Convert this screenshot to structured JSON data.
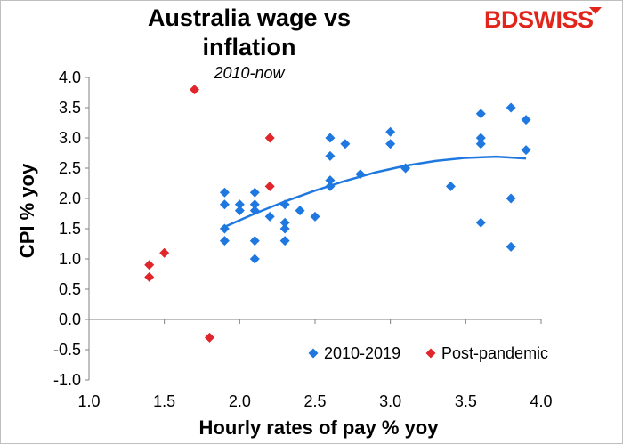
{
  "chart_data": {
    "type": "scatter",
    "title": "Australia wage vs inflation",
    "subtitle": "2010-now",
    "xlabel": "Hourly rates of pay %  yoy",
    "ylabel": "CPI % yoy",
    "xlim": [
      1.0,
      4.0
    ],
    "ylim": [
      -1.0,
      4.0
    ],
    "x_ticks": [
      "1.0",
      "1.5",
      "2.0",
      "2.5",
      "3.0",
      "3.5",
      "4.0"
    ],
    "y_ticks": [
      "4.0",
      "3.5",
      "3.0",
      "2.5",
      "2.0",
      "1.5",
      "1.0",
      "0.5",
      "0.0",
      "-0.5",
      "-1.0"
    ],
    "grid": false,
    "legend_position": "bottom-right",
    "series": [
      {
        "name": "2010-2019",
        "color": "#1f78e0",
        "marker": "diamond",
        "points": [
          [
            1.9,
            2.1
          ],
          [
            1.9,
            1.9
          ],
          [
            1.9,
            1.5
          ],
          [
            1.9,
            1.3
          ],
          [
            2.0,
            1.9
          ],
          [
            2.0,
            1.8
          ],
          [
            2.1,
            2.1
          ],
          [
            2.1,
            1.9
          ],
          [
            2.1,
            1.8
          ],
          [
            2.1,
            1.3
          ],
          [
            2.1,
            1.0
          ],
          [
            2.2,
            1.7
          ],
          [
            2.3,
            1.9
          ],
          [
            2.3,
            1.6
          ],
          [
            2.3,
            1.5
          ],
          [
            2.3,
            1.3
          ],
          [
            2.4,
            1.8
          ],
          [
            2.5,
            1.7
          ],
          [
            2.6,
            3.0
          ],
          [
            2.6,
            2.7
          ],
          [
            2.6,
            2.3
          ],
          [
            2.6,
            2.2
          ],
          [
            2.7,
            2.9
          ],
          [
            2.8,
            2.4
          ],
          [
            3.0,
            3.1
          ],
          [
            3.0,
            2.9
          ],
          [
            3.1,
            2.5
          ],
          [
            3.4,
            2.2
          ],
          [
            3.6,
            3.4
          ],
          [
            3.6,
            3.0
          ],
          [
            3.6,
            2.9
          ],
          [
            3.6,
            1.6
          ],
          [
            3.8,
            3.5
          ],
          [
            3.8,
            2.0
          ],
          [
            3.8,
            1.2
          ],
          [
            3.9,
            3.3
          ],
          [
            3.9,
            2.8
          ]
        ]
      },
      {
        "name": "Post-pandemic",
        "color": "#e0262b",
        "marker": "diamond",
        "points": [
          [
            1.7,
            3.8
          ],
          [
            2.2,
            3.0
          ],
          [
            2.2,
            2.2
          ],
          [
            1.5,
            1.1
          ],
          [
            1.4,
            0.9
          ],
          [
            1.4,
            0.7
          ],
          [
            1.8,
            -0.3
          ]
        ]
      }
    ],
    "trendline": {
      "series": "2010-2019",
      "type": "polynomial",
      "x_range": [
        1.9,
        3.9
      ],
      "points": [
        [
          1.9,
          1.53
        ],
        [
          2.1,
          1.75
        ],
        [
          2.3,
          1.95
        ],
        [
          2.5,
          2.13
        ],
        [
          2.7,
          2.29
        ],
        [
          2.9,
          2.43
        ],
        [
          3.1,
          2.54
        ],
        [
          3.3,
          2.62
        ],
        [
          3.5,
          2.67
        ],
        [
          3.7,
          2.69
        ],
        [
          3.9,
          2.66
        ]
      ]
    }
  },
  "branding": {
    "logo_text": "BDSWISS"
  }
}
